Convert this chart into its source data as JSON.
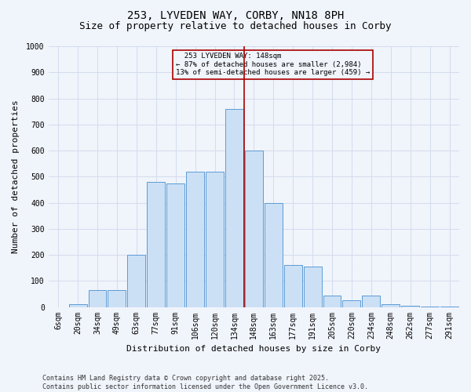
{
  "title": "253, LYVEDEN WAY, CORBY, NN18 8PH",
  "subtitle": "Size of property relative to detached houses in Corby",
  "xlabel": "Distribution of detached houses by size in Corby",
  "ylabel": "Number of detached properties",
  "bins": [
    "6sqm",
    "20sqm",
    "34sqm",
    "49sqm",
    "63sqm",
    "77sqm",
    "91sqm",
    "106sqm",
    "120sqm",
    "134sqm",
    "148sqm",
    "163sqm",
    "177sqm",
    "191sqm",
    "205sqm",
    "220sqm",
    "234sqm",
    "248sqm",
    "262sqm",
    "277sqm",
    "291sqm"
  ],
  "bar_values": [
    0,
    12,
    65,
    65,
    200,
    480,
    475,
    520,
    520,
    760,
    600,
    400,
    160,
    155,
    45,
    27,
    45,
    10,
    5,
    3,
    3
  ],
  "bar_color": "#cce0f5",
  "bar_edge_color": "#5b9bd5",
  "annotation_box_color": "#aa0000",
  "grid_color": "#d4dced",
  "background_color": "#f0f4fb",
  "ylim": [
    0,
    1000
  ],
  "annotation_line_idx": 10,
  "annotation_line_label": "253 LYVEDEN WAY: 148sqm",
  "pct_smaller": "87% of detached houses are smaller (2,984)",
  "pct_larger": "13% of semi-detached houses are larger (459)",
  "footer": "Contains HM Land Registry data © Crown copyright and database right 2025.\nContains public sector information licensed under the Open Government Licence v3.0.",
  "title_fontsize": 10,
  "subtitle_fontsize": 9,
  "axis_label_fontsize": 8,
  "tick_fontsize": 7,
  "footer_fontsize": 6
}
